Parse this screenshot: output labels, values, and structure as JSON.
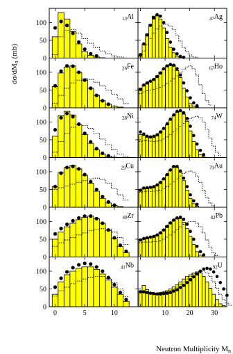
{
  "figure": {
    "ylabel": "dσ/dM",
    "ylabel_sub": "n",
    "ylabel_unit": "(mb)",
    "xlabel": "Neutron Multiplicity M",
    "xlabel_sub": "n",
    "left_yticks": [
      "0",
      "50",
      "100"
    ],
    "x_tick_labels": [
      "0",
      "5",
      "10",
      "10",
      "20",
      "30"
    ],
    "colors": {
      "histogram_fill": "#ffff00",
      "histogram_edge": "#000000",
      "points": "#000000",
      "dotted": "#000000"
    }
  },
  "chart_data": [
    {
      "panel": "Al",
      "mass": "13",
      "col": 0,
      "row": 0,
      "type": "bar",
      "xlim": [
        -1,
        14
      ],
      "ylim": [
        0,
        140
      ],
      "hist": [
        60,
        128,
        110,
        75,
        40,
        18,
        8,
        3,
        1,
        0,
        0,
        0,
        0
      ],
      "points": [
        [
          0,
          85
        ],
        [
          1,
          103
        ],
        [
          2,
          92
        ],
        [
          3,
          70
        ],
        [
          4,
          45
        ],
        [
          5,
          25
        ],
        [
          6,
          12
        ],
        [
          7,
          6
        ]
      ],
      "dotted": [
        10,
        60,
        78,
        80,
        70,
        55,
        42,
        30,
        20,
        12,
        6,
        3,
        0
      ]
    },
    {
      "panel": "Ag",
      "mass": "47",
      "col": 1,
      "row": 0,
      "type": "bar",
      "xlim": [
        -1,
        35
      ],
      "ylim": [
        0,
        140
      ],
      "hist": [
        10,
        40,
        68,
        95,
        118,
        122,
        110,
        85,
        55,
        30,
        15,
        5,
        2,
        0
      ],
      "points": [
        [
          0,
          10
        ],
        [
          1,
          40
        ],
        [
          2,
          65
        ],
        [
          3,
          92
        ],
        [
          4,
          113
        ],
        [
          5,
          122
        ],
        [
          6,
          118
        ],
        [
          7,
          100
        ],
        [
          8,
          72
        ],
        [
          9,
          45
        ],
        [
          10,
          25
        ],
        [
          11,
          12
        ],
        [
          12,
          5
        ],
        [
          13,
          2
        ]
      ],
      "dotted": [
        5,
        20,
        38,
        55,
        70,
        82,
        90,
        95,
        95,
        90,
        80,
        65,
        48,
        30,
        18,
        9,
        3,
        1
      ]
    },
    {
      "panel": "Fe",
      "mass": "26",
      "col": 0,
      "row": 1,
      "type": "bar",
      "xlim": [
        -1,
        14
      ],
      "ylim": [
        0,
        140
      ],
      "hist": [
        60,
        98,
        115,
        118,
        100,
        78,
        55,
        35,
        20,
        10,
        5,
        2,
        0
      ],
      "points": [
        [
          0,
          62
        ],
        [
          1,
          103
        ],
        [
          2,
          118
        ],
        [
          3,
          117
        ],
        [
          4,
          100
        ],
        [
          5,
          78
        ],
        [
          6,
          55
        ],
        [
          7,
          35
        ],
        [
          8,
          20
        ],
        [
          9,
          10
        ]
      ],
      "dotted": [
        12,
        35,
        55,
        70,
        78,
        82,
        80,
        72,
        62,
        50,
        38,
        25,
        12
      ]
    },
    {
      "panel": "Ho",
      "mass": "67",
      "col": 1,
      "row": 1,
      "type": "bar",
      "xlim": [
        -1,
        35
      ],
      "ylim": [
        0,
        140
      ],
      "hist": [
        55,
        65,
        70,
        75,
        80,
        90,
        100,
        110,
        118,
        122,
        120,
        105,
        85,
        55,
        30,
        12,
        5,
        2
      ],
      "points": [
        [
          0,
          52
        ],
        [
          1,
          64
        ],
        [
          2,
          70
        ],
        [
          3,
          75
        ],
        [
          4,
          80
        ],
        [
          5,
          88
        ],
        [
          6,
          98
        ],
        [
          7,
          110
        ],
        [
          8,
          118
        ],
        [
          9,
          122
        ],
        [
          10,
          120
        ],
        [
          11,
          110
        ],
        [
          12,
          92
        ],
        [
          13,
          70
        ],
        [
          14,
          48
        ],
        [
          15,
          28
        ],
        [
          16,
          14
        ],
        [
          17,
          6
        ]
      ],
      "dotted": [
        40,
        45,
        48,
        50,
        52,
        55,
        58,
        62,
        68,
        75,
        82,
        90,
        98,
        108,
        115,
        118,
        110,
        92,
        65,
        40,
        20,
        8
      ]
    },
    {
      "panel": "Ni",
      "mass": "28",
      "col": 0,
      "row": 2,
      "type": "bar",
      "xlim": [
        -1,
        14
      ],
      "ylim": [
        0,
        140
      ],
      "hist": [
        60,
        118,
        130,
        120,
        92,
        65,
        40,
        22,
        10,
        4,
        1,
        0,
        0
      ],
      "points": [
        [
          0,
          78
        ],
        [
          1,
          112
        ],
        [
          2,
          124
        ],
        [
          3,
          115
        ],
        [
          4,
          94
        ],
        [
          5,
          68
        ],
        [
          6,
          44
        ],
        [
          7,
          25
        ],
        [
          8,
          12
        ],
        [
          9,
          5
        ]
      ],
      "dotted": [
        15,
        45,
        68,
        85,
        92,
        90,
        82,
        68,
        52,
        36,
        22,
        10,
        3
      ]
    },
    {
      "panel": "W",
      "mass": "74",
      "col": 1,
      "row": 2,
      "type": "bar",
      "xlim": [
        -1,
        35
      ],
      "ylim": [
        0,
        140
      ],
      "hist": [
        65,
        62,
        58,
        55,
        58,
        62,
        70,
        80,
        92,
        105,
        118,
        128,
        130,
        122,
        102,
        75,
        45,
        22,
        8,
        2
      ],
      "points": [
        [
          0,
          72
        ],
        [
          1,
          66
        ],
        [
          2,
          60
        ],
        [
          3,
          58
        ],
        [
          4,
          60
        ],
        [
          5,
          64
        ],
        [
          6,
          72
        ],
        [
          7,
          82
        ],
        [
          8,
          95
        ],
        [
          9,
          108
        ],
        [
          10,
          120
        ],
        [
          11,
          130
        ],
        [
          12,
          132
        ],
        [
          13,
          126
        ],
        [
          14,
          110
        ],
        [
          15,
          88
        ],
        [
          16,
          62
        ],
        [
          17,
          38
        ],
        [
          18,
          20
        ],
        [
          19,
          8
        ]
      ],
      "dotted": [
        45,
        48,
        48,
        46,
        45,
        46,
        48,
        52,
        58,
        65,
        72,
        80,
        88,
        96,
        104,
        110,
        114,
        116,
        112,
        100,
        80,
        55,
        32,
        15,
        5
      ]
    },
    {
      "panel": "Cu",
      "mass": "29",
      "col": 0,
      "row": 3,
      "type": "bar",
      "xlim": [
        -1,
        14
      ],
      "ylim": [
        0,
        140
      ],
      "hist": [
        58,
        98,
        112,
        118,
        108,
        90,
        68,
        45,
        25,
        12,
        5,
        2,
        0
      ],
      "points": [
        [
          0,
          58
        ],
        [
          1,
          96
        ],
        [
          2,
          112
        ],
        [
          3,
          115
        ],
        [
          4,
          108
        ],
        [
          5,
          92
        ],
        [
          6,
          72
        ],
        [
          7,
          50
        ],
        [
          8,
          30
        ],
        [
          9,
          15
        ],
        [
          10,
          6
        ]
      ],
      "dotted": [
        50,
        55,
        60,
        65,
        70,
        75,
        80,
        82,
        78,
        68,
        52,
        35,
        20
      ]
    },
    {
      "panel": "Au",
      "mass": "79",
      "col": 1,
      "row": 3,
      "type": "bar",
      "xlim": [
        -1,
        35
      ],
      "ylim": [
        0,
        140
      ],
      "hist": [
        50,
        55,
        55,
        55,
        58,
        62,
        70,
        80,
        92,
        105,
        115,
        112,
        98,
        75,
        48,
        25,
        10,
        3
      ],
      "points": [
        [
          0,
          48
        ],
        [
          1,
          54
        ],
        [
          2,
          55
        ],
        [
          3,
          56
        ],
        [
          4,
          58
        ],
        [
          5,
          63
        ],
        [
          6,
          70
        ],
        [
          7,
          80
        ],
        [
          8,
          92
        ],
        [
          9,
          105
        ],
        [
          10,
          115
        ],
        [
          11,
          115
        ],
        [
          12,
          102
        ],
        [
          13,
          82
        ],
        [
          14,
          58
        ],
        [
          15,
          35
        ],
        [
          16,
          18
        ],
        [
          17,
          8
        ]
      ],
      "dotted": [
        42,
        45,
        45,
        44,
        45,
        46,
        48,
        52,
        58,
        65,
        72,
        80,
        88,
        95,
        100,
        102,
        98,
        88,
        70,
        48,
        28,
        12,
        4
      ]
    },
    {
      "panel": "Zr",
      "mass": "40",
      "col": 0,
      "row": 4,
      "type": "bar",
      "xlim": [
        -1,
        14
      ],
      "ylim": [
        0,
        140
      ],
      "hist": [
        50,
        70,
        85,
        95,
        105,
        112,
        115,
        108,
        95,
        75,
        52,
        30,
        12
      ],
      "points": [
        [
          0,
          65
        ],
        [
          1,
          80
        ],
        [
          2,
          92
        ],
        [
          3,
          102
        ],
        [
          4,
          110
        ],
        [
          5,
          115
        ],
        [
          6,
          115
        ],
        [
          7,
          108
        ],
        [
          8,
          95
        ],
        [
          9,
          76
        ],
        [
          10,
          54
        ],
        [
          11,
          33
        ],
        [
          12,
          16
        ]
      ],
      "dotted": [
        30,
        40,
        48,
        55,
        62,
        68,
        74,
        78,
        80,
        78,
        70,
        55,
        35
      ]
    },
    {
      "panel": "Pb",
      "mass": "82",
      "col": 1,
      "row": 4,
      "type": "bar",
      "xlim": [
        -1,
        35
      ],
      "ylim": [
        0,
        140
      ],
      "hist": [
        50,
        52,
        55,
        55,
        58,
        62,
        68,
        78,
        88,
        98,
        105,
        110,
        108,
        98,
        80,
        58,
        35,
        15,
        5
      ],
      "points": [
        [
          0,
          48
        ],
        [
          1,
          52
        ],
        [
          2,
          54
        ],
        [
          3,
          56
        ],
        [
          4,
          58
        ],
        [
          5,
          62
        ],
        [
          6,
          68
        ],
        [
          7,
          76
        ],
        [
          8,
          86
        ],
        [
          9,
          96
        ],
        [
          10,
          104
        ],
        [
          11,
          110
        ],
        [
          12,
          112
        ],
        [
          13,
          106
        ],
        [
          14,
          92
        ],
        [
          15,
          72
        ],
        [
          16,
          50
        ],
        [
          17,
          30
        ],
        [
          18,
          15
        ],
        [
          19,
          6
        ]
      ],
      "dotted": [
        40,
        42,
        42,
        42,
        43,
        44,
        46,
        50,
        56,
        62,
        70,
        78,
        85,
        92,
        97,
        100,
        100,
        95,
        85,
        68,
        48,
        28,
        12,
        4
      ]
    },
    {
      "panel": "Nb",
      "mass": "41",
      "col": 0,
      "row": 5,
      "type": "bar",
      "xlim": [
        -1,
        14
      ],
      "ylim": [
        0,
        140
      ],
      "hist": [
        35,
        70,
        90,
        100,
        108,
        112,
        112,
        105,
        92,
        75,
        55,
        35,
        15
      ],
      "points": [
        [
          0,
          55
        ],
        [
          1,
          80
        ],
        [
          2,
          98
        ],
        [
          3,
          110
        ],
        [
          4,
          118
        ],
        [
          5,
          122
        ],
        [
          6,
          120
        ],
        [
          7,
          112
        ],
        [
          8,
          100
        ],
        [
          9,
          82
        ],
        [
          10,
          62
        ],
        [
          11,
          40
        ],
        [
          12,
          20
        ]
      ],
      "dotted": [
        30,
        45,
        55,
        65,
        72,
        78,
        82,
        85,
        85,
        80,
        68,
        50,
        28
      ]
    },
    {
      "panel": "U",
      "mass": "92",
      "col": 1,
      "row": 5,
      "type": "bar",
      "xlim": [
        -1,
        35
      ],
      "ylim": [
        0,
        140
      ],
      "hist": [
        45,
        60,
        48,
        40,
        38,
        38,
        40,
        42,
        45,
        50,
        56,
        62,
        70,
        78,
        85,
        90,
        95,
        98,
        95,
        85,
        70,
        52,
        35,
        20,
        8,
        3
      ],
      "points": [
        [
          0,
          42
        ],
        [
          1,
          42
        ],
        [
          2,
          40
        ],
        [
          3,
          38
        ],
        [
          4,
          37
        ],
        [
          5,
          36
        ],
        [
          6,
          36
        ],
        [
          7,
          37
        ],
        [
          8,
          38
        ],
        [
          9,
          40
        ],
        [
          10,
          44
        ],
        [
          11,
          48
        ],
        [
          12,
          54
        ],
        [
          13,
          60
        ],
        [
          14,
          68
        ],
        [
          15,
          76
        ],
        [
          16,
          84
        ],
        [
          17,
          92
        ],
        [
          18,
          100
        ],
        [
          19,
          106
        ],
        [
          20,
          108
        ],
        [
          21,
          106
        ],
        [
          22,
          98
        ],
        [
          23,
          85
        ],
        [
          24,
          68
        ],
        [
          25,
          50
        ],
        [
          26,
          32
        ]
      ],
      "dotted": [
        40,
        42,
        42,
        40,
        38,
        38,
        38,
        40,
        42,
        45,
        50,
        55,
        62,
        70,
        78,
        85,
        92,
        98,
        100,
        100,
        95,
        85,
        70,
        52,
        35,
        20,
        10,
        4
      ]
    }
  ]
}
